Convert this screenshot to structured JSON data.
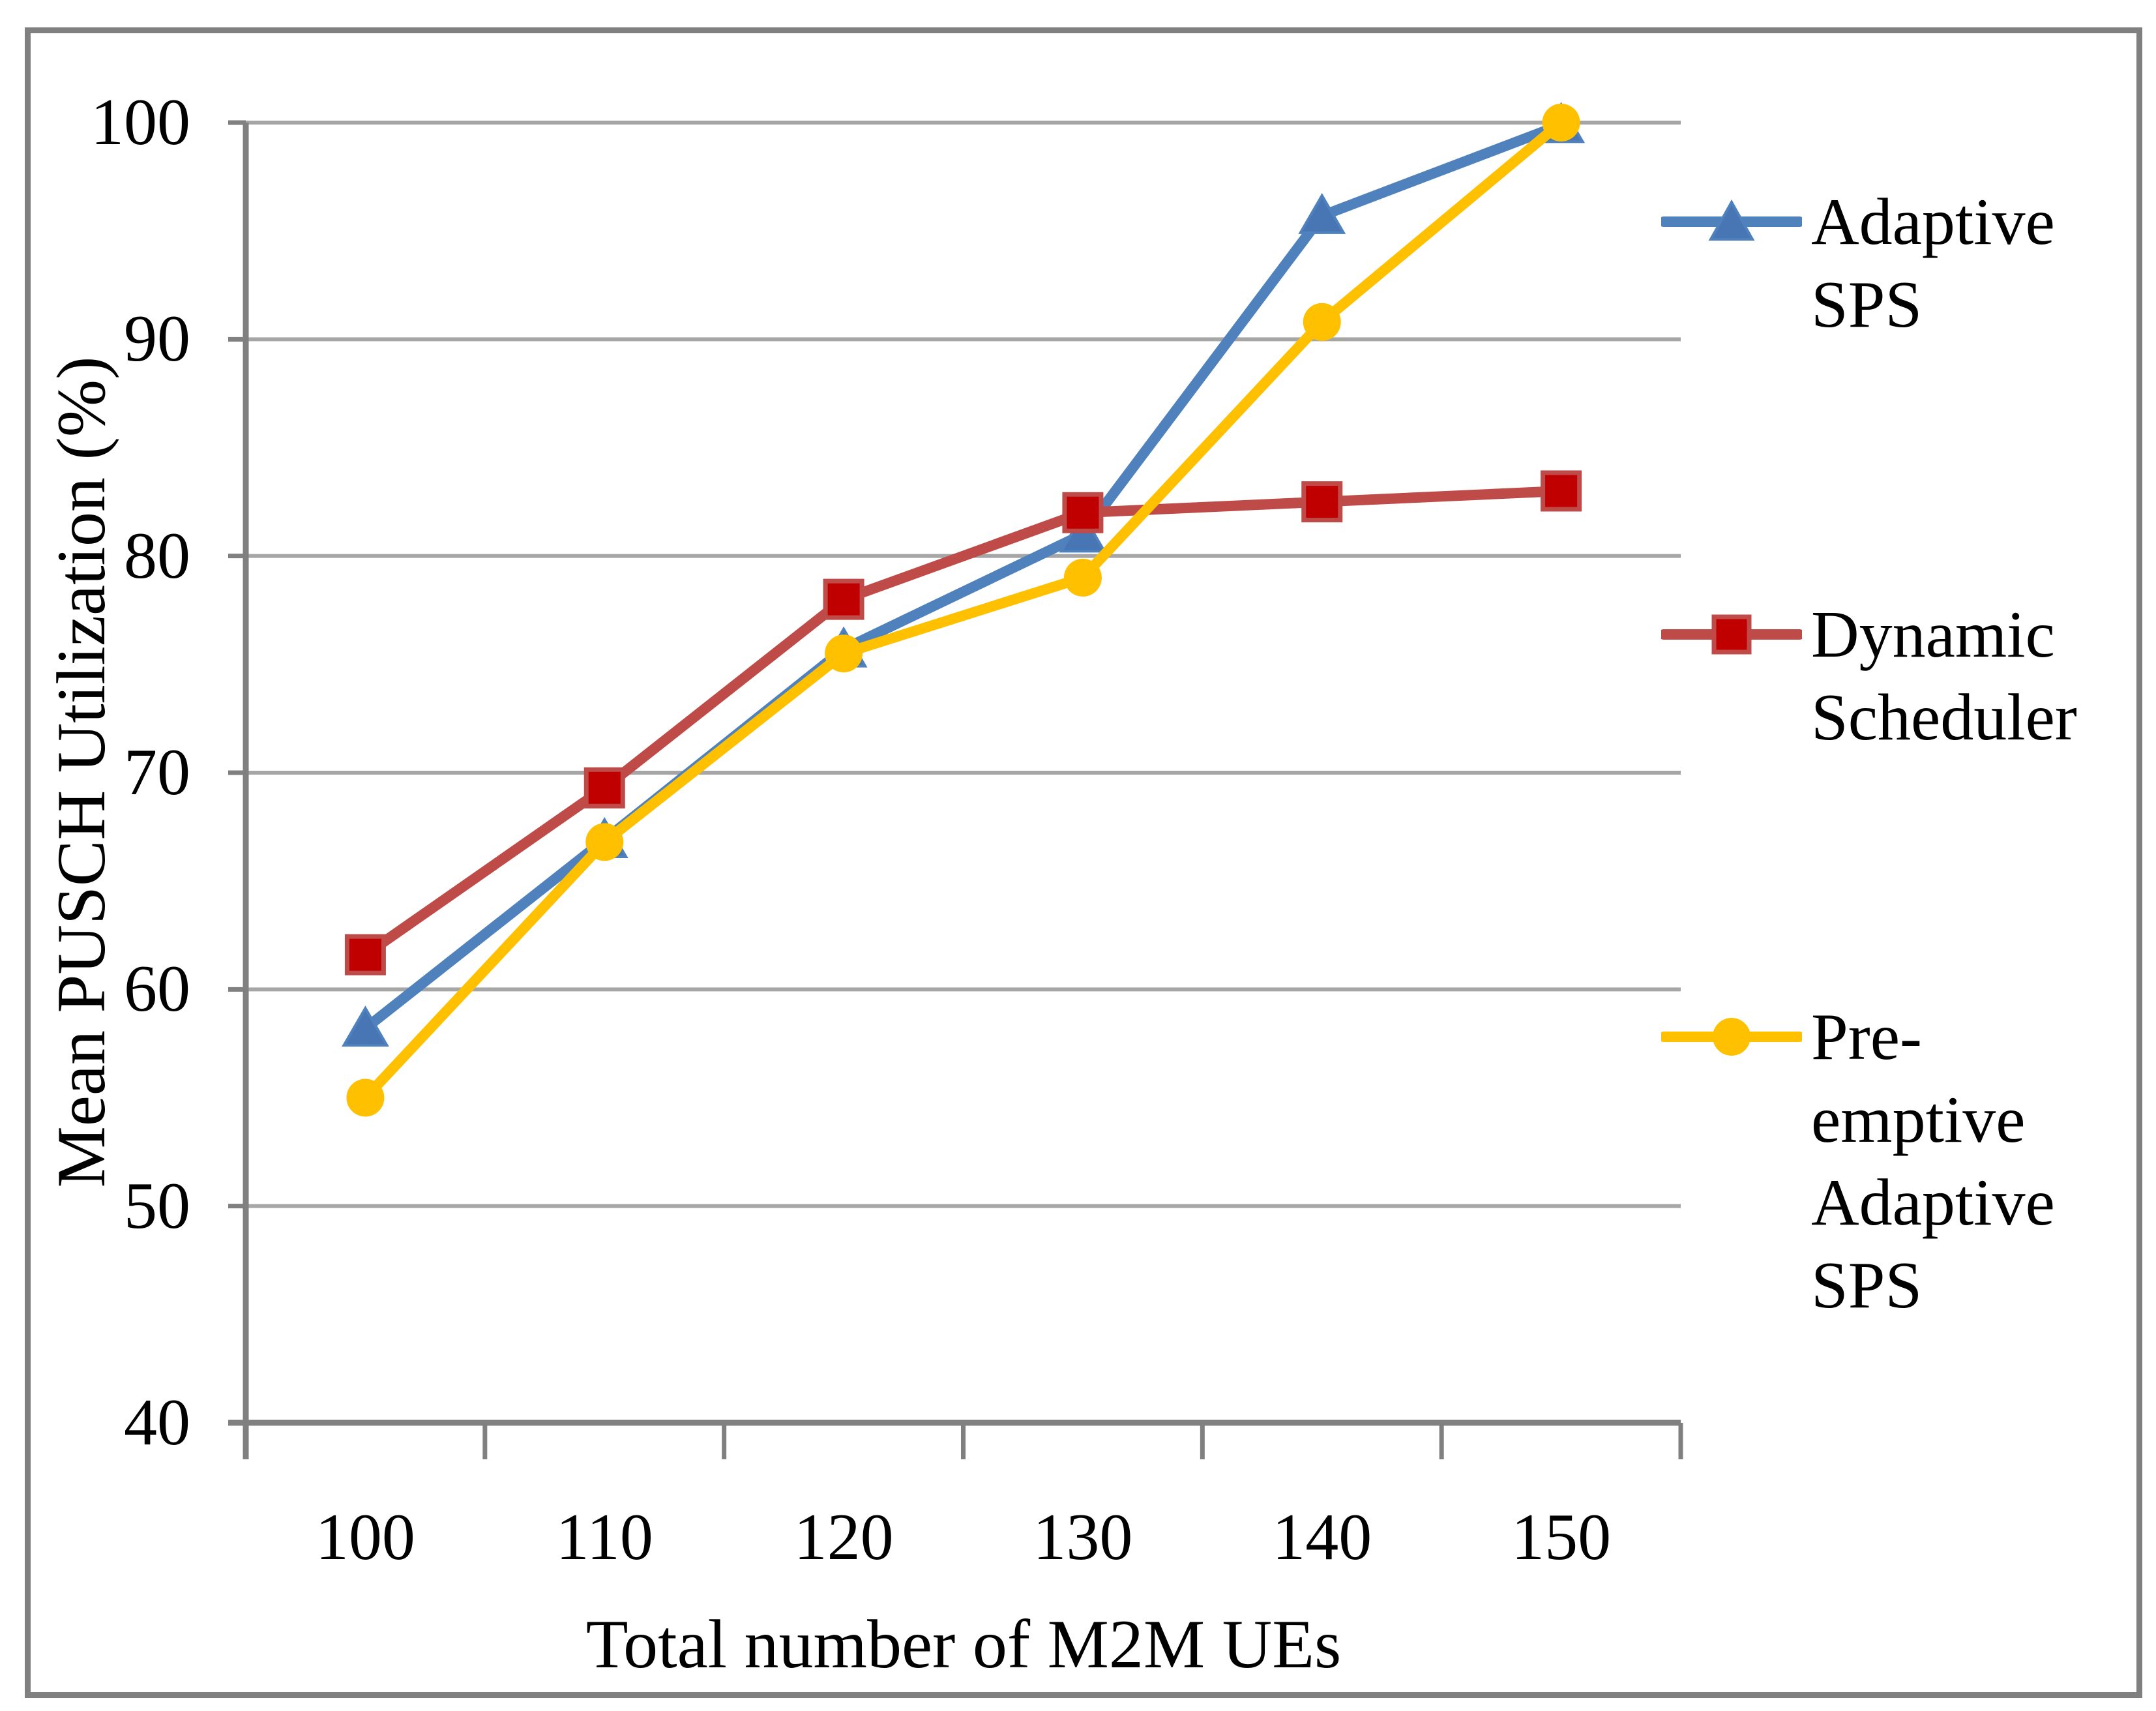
{
  "figure": {
    "border_color": "#808080",
    "background": "#ffffff"
  },
  "axes": {
    "grid_color": "#A6A6A6",
    "axis_color": "#808080",
    "y_ticks": [
      "100",
      "90",
      "80",
      "70",
      "60",
      "50",
      "40"
    ],
    "x_ticks": [
      "100",
      "110",
      "120",
      "130",
      "140",
      "150"
    ]
  },
  "legend": {
    "items": [
      {
        "label": "Adaptive\nSPS",
        "marker": "triangle"
      },
      {
        "label": "Dynamic\nScheduler",
        "marker": "square"
      },
      {
        "label": "Pre-\nemptive\nAdaptive\nSPS",
        "marker": "circle"
      }
    ]
  },
  "chart_data": {
    "type": "line",
    "title": "",
    "xlabel": "Total number of M2M UEs",
    "ylabel": "Mean PUSCH Utilization (%)",
    "categories": [
      100,
      110,
      120,
      130,
      140,
      150
    ],
    "ylim": [
      40,
      100
    ],
    "ytick_step": 10,
    "grid": true,
    "legend_position": "right",
    "series": [
      {
        "name": "Adaptive SPS",
        "marker": "triangle",
        "color": "#4F81BD",
        "marker_color": "#4876B4",
        "values": [
          58.2,
          66.9,
          75.7,
          81.0,
          95.7,
          99.9
        ]
      },
      {
        "name": "Dynamic Scheduler",
        "marker": "square",
        "color": "#BE4B48",
        "marker_color": "#C00000",
        "values": [
          61.6,
          69.3,
          78.0,
          82.0,
          82.5,
          83.0
        ]
      },
      {
        "name": "Pre-emptive Adaptive SPS",
        "marker": "circle",
        "color": "#FFC000",
        "marker_color": "#FFC000",
        "values": [
          55.0,
          66.8,
          75.5,
          79.0,
          90.8,
          100.0
        ]
      }
    ]
  }
}
